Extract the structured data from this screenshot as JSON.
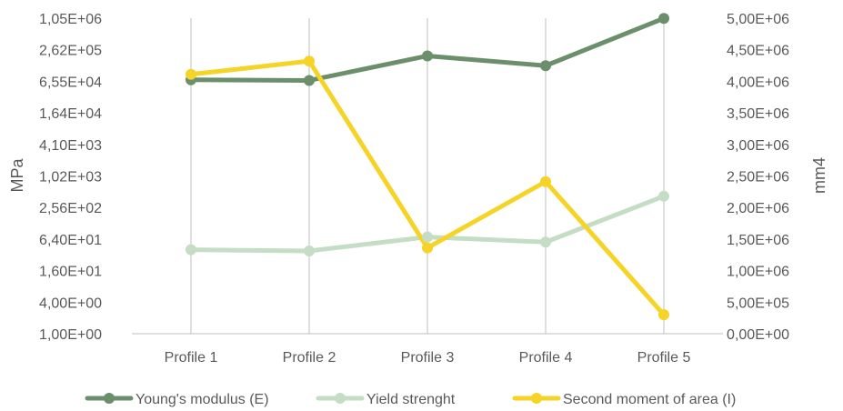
{
  "chart_data": {
    "type": "line",
    "categories": [
      "Profile 1",
      "Profile 2",
      "Profile 3",
      "Profile 4",
      "Profile 5"
    ],
    "y_left": {
      "label": "MPa",
      "scale": "log4",
      "ticks": [
        "1,00E+00",
        "4,00E+00",
        "1,60E+01",
        "6,40E+01",
        "2,56E+02",
        "1,02E+03",
        "4,10E+03",
        "1,64E+04",
        "6,55E+04",
        "2,62E+05",
        "1,05E+06"
      ],
      "range": [
        1,
        1048576
      ]
    },
    "y_right": {
      "label": "mm4",
      "scale": "linear",
      "ticks": [
        "0,00E+00",
        "5,00E+05",
        "1,00E+06",
        "1,50E+06",
        "2,00E+06",
        "2,50E+06",
        "3,00E+06",
        "3,50E+06",
        "4,00E+06",
        "4,50E+06",
        "5,00E+06"
      ],
      "range": [
        0,
        5000000
      ]
    },
    "series": [
      {
        "name": "Young's modulus (E)",
        "axis": "left",
        "color": "#6b8f6b",
        "values": [
          70000,
          68000,
          200000,
          130000,
          1040000
        ]
      },
      {
        "name": "Yield strenght",
        "axis": "left",
        "color": "#c5dcc5",
        "values": [
          40,
          38,
          70,
          56,
          420
        ]
      },
      {
        "name": "Second moment of area (I)",
        "axis": "right",
        "color": "#f5d327",
        "values": [
          4110000,
          4320000,
          1360000,
          2410000,
          300000
        ]
      }
    ],
    "grid": {
      "vertical_category_lines": true,
      "horizontal": false
    },
    "legend": "bottom"
  }
}
